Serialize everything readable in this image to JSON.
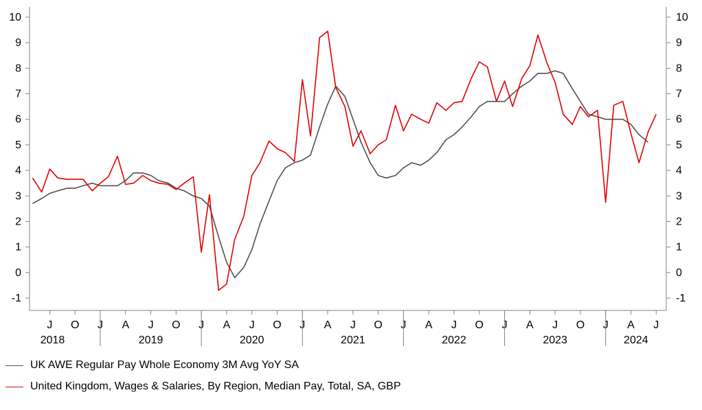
{
  "chart_data": {
    "type": "line",
    "ylim": [
      -1,
      10
    ],
    "yticks": [
      "-1",
      "0",
      "1",
      "2",
      "3",
      "4",
      "5",
      "6",
      "7",
      "8",
      "9",
      "10"
    ],
    "xlim": [
      2018.3,
      2024.6
    ],
    "x_month_ticks": [
      "J",
      "O",
      "J",
      "A",
      "J",
      "O",
      "J",
      "A",
      "J",
      "O",
      "J",
      "A",
      "J",
      "O",
      "J",
      "A",
      "J",
      "O",
      "J",
      "A",
      "J",
      "O",
      "J",
      "A",
      "J"
    ],
    "x_year_labels": [
      "2018",
      "2019",
      "2020",
      "2021",
      "2022",
      "2023",
      "2024"
    ],
    "series": [
      {
        "name": "UK AWE Regular Pay Whole Economy 3M Avg YoY SA",
        "color": "#505050",
        "x": [
          2018.33,
          2018.42,
          2018.5,
          2018.58,
          2018.67,
          2018.75,
          2018.83,
          2018.92,
          2019.0,
          2019.08,
          2019.17,
          2019.25,
          2019.33,
          2019.42,
          2019.5,
          2019.58,
          2019.67,
          2019.75,
          2019.83,
          2019.92,
          2020.0,
          2020.08,
          2020.17,
          2020.25,
          2020.33,
          2020.42,
          2020.5,
          2020.58,
          2020.67,
          2020.75,
          2020.83,
          2020.92,
          2021.0,
          2021.08,
          2021.17,
          2021.25,
          2021.33,
          2021.42,
          2021.5,
          2021.58,
          2021.67,
          2021.75,
          2021.83,
          2021.92,
          2022.0,
          2022.08,
          2022.17,
          2022.25,
          2022.33,
          2022.42,
          2022.5,
          2022.58,
          2022.67,
          2022.75,
          2022.83,
          2022.92,
          2023.0,
          2023.08,
          2023.17,
          2023.25,
          2023.33,
          2023.42,
          2023.5,
          2023.58,
          2023.67,
          2023.75,
          2023.83,
          2023.92,
          2024.0,
          2024.08,
          2024.17,
          2024.25,
          2024.33,
          2024.42
        ],
        "values": [
          2.7,
          2.9,
          3.1,
          3.2,
          3.3,
          3.3,
          3.4,
          3.5,
          3.4,
          3.4,
          3.4,
          3.6,
          3.9,
          3.9,
          3.8,
          3.6,
          3.5,
          3.3,
          3.2,
          3.0,
          2.9,
          2.6,
          1.4,
          0.4,
          -0.2,
          0.2,
          0.9,
          1.9,
          2.8,
          3.6,
          4.1,
          4.3,
          4.4,
          4.6,
          5.7,
          6.6,
          7.3,
          6.9,
          6.0,
          5.1,
          4.3,
          3.8,
          3.7,
          3.8,
          4.1,
          4.3,
          4.2,
          4.4,
          4.7,
          5.2,
          5.4,
          5.7,
          6.1,
          6.5,
          6.7,
          6.7,
          6.7,
          7.0,
          7.3,
          7.5,
          7.8,
          7.8,
          7.9,
          7.8,
          7.2,
          6.7,
          6.2,
          6.1,
          6.0,
          6.0,
          6.0,
          5.8,
          5.4,
          5.1
        ]
      },
      {
        "name": "United Kingdom, Wages & Salaries, By Region, Median Pay, Total, SA, GBP",
        "color": "#e00000",
        "x": [
          2018.33,
          2018.42,
          2018.5,
          2018.58,
          2018.67,
          2018.75,
          2018.83,
          2018.92,
          2019.0,
          2019.08,
          2019.17,
          2019.25,
          2019.33,
          2019.42,
          2019.5,
          2019.58,
          2019.67,
          2019.75,
          2019.83,
          2019.92,
          2020.0,
          2020.08,
          2020.17,
          2020.25,
          2020.33,
          2020.42,
          2020.5,
          2020.58,
          2020.67,
          2020.75,
          2020.83,
          2020.92,
          2021.0,
          2021.08,
          2021.17,
          2021.25,
          2021.33,
          2021.42,
          2021.5,
          2021.58,
          2021.67,
          2021.75,
          2021.83,
          2021.92,
          2022.0,
          2022.08,
          2022.17,
          2022.25,
          2022.33,
          2022.42,
          2022.5,
          2022.58,
          2022.67,
          2022.75,
          2022.83,
          2022.92,
          2023.0,
          2023.08,
          2023.17,
          2023.25,
          2023.33,
          2023.42,
          2023.5,
          2023.58,
          2023.67,
          2023.75,
          2023.83,
          2023.92,
          2024.0,
          2024.08,
          2024.17,
          2024.25,
          2024.33,
          2024.42,
          2024.5
        ],
        "values": [
          3.7,
          3.15,
          4.05,
          3.7,
          3.65,
          3.65,
          3.65,
          3.2,
          3.5,
          3.75,
          4.55,
          3.45,
          3.5,
          3.8,
          3.6,
          3.5,
          3.45,
          3.25,
          3.5,
          3.75,
          0.8,
          3.05,
          -0.7,
          -0.45,
          1.3,
          2.2,
          3.8,
          4.3,
          5.15,
          4.85,
          4.7,
          4.35,
          7.55,
          5.35,
          9.2,
          9.45,
          7.25,
          6.5,
          4.95,
          5.55,
          4.65,
          5.0,
          5.2,
          6.55,
          5.55,
          6.2,
          6.0,
          5.85,
          6.65,
          6.35,
          6.65,
          6.7,
          7.6,
          8.25,
          8.05,
          6.7,
          7.5,
          6.5,
          7.6,
          8.1,
          9.3,
          8.2,
          7.45,
          6.2,
          5.8,
          6.5,
          6.1,
          6.35,
          2.75,
          6.55,
          6.7,
          5.45,
          4.3,
          5.5,
          6.2
        ]
      }
    ]
  },
  "legend": {
    "series_1": "UK AWE Regular Pay Whole Economy 3M Avg YoY SA",
    "series_2": "United Kingdom, Wages & Salaries, By Region, Median Pay, Total, SA, GBP"
  }
}
